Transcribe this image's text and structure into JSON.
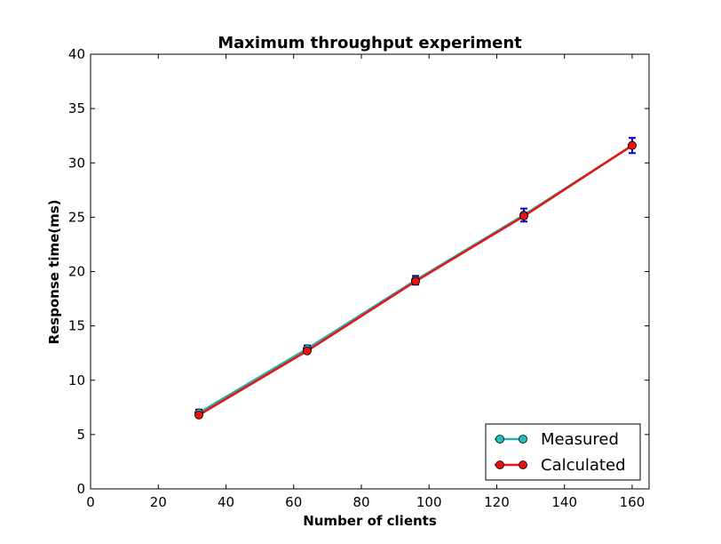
{
  "chart_data": {
    "type": "line",
    "title": "Maximum throughput experiment",
    "xlabel": "Number of clients",
    "ylabel": "Response time(ms)",
    "xlim": [
      0,
      165
    ],
    "ylim": [
      0,
      40
    ],
    "xticks": [
      0,
      20,
      40,
      60,
      80,
      100,
      120,
      140,
      160
    ],
    "yticks": [
      0,
      5,
      10,
      15,
      20,
      25,
      30,
      35,
      40
    ],
    "grid": false,
    "legend_position": "lower-right",
    "x": [
      32,
      64,
      96,
      128,
      160
    ],
    "series": [
      {
        "name": "Measured",
        "color": "#20b2aa",
        "marker_color": "#20c0c0",
        "values": [
          7.0,
          12.9,
          19.2,
          25.2,
          31.6
        ],
        "error": [
          0.3,
          0.3,
          0.4,
          0.6,
          0.7
        ],
        "error_color": "#0000dd"
      },
      {
        "name": "Calculated",
        "color": "#ee1111",
        "marker_color": "#ee1111",
        "values": [
          6.8,
          12.7,
          19.1,
          25.1,
          31.6
        ]
      }
    ]
  }
}
